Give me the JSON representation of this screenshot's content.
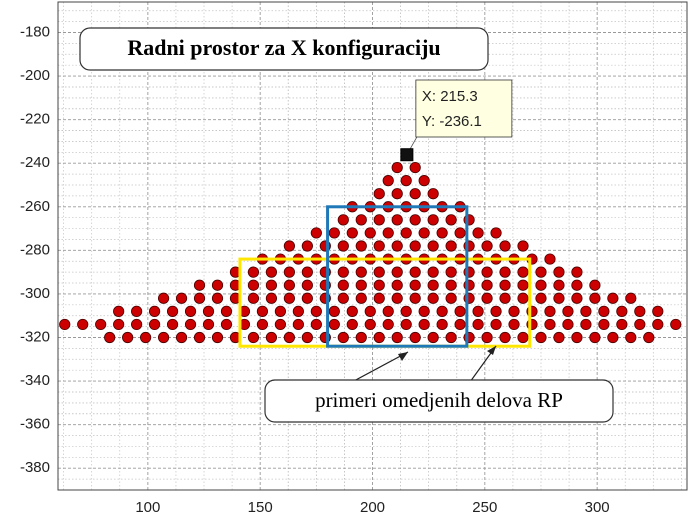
{
  "chart_data": {
    "type": "scatter",
    "title": "Radni prostor za X konfiguraciju",
    "annotation": "primeri omedjenih delova RP",
    "xlim": [
      60,
      340
    ],
    "ylim": [
      -390,
      -166
    ],
    "xticks": [
      100,
      150,
      200,
      250,
      300
    ],
    "yticks": [
      -380,
      -360,
      -340,
      -320,
      -300,
      -280,
      -260,
      -240,
      -220,
      -200,
      -180
    ],
    "grid": true,
    "color": "#cc0000",
    "rows": [
      {
        "y": -242,
        "x": [
          211,
          219
        ]
      },
      {
        "y": -248,
        "x": [
          207,
          215,
          223
        ]
      },
      {
        "y": -254,
        "x": [
          203,
          211,
          219,
          227
        ]
      },
      {
        "y": -260,
        "x": [
          191,
          199,
          207,
          215,
          223,
          231,
          239
        ]
      },
      {
        "y": -266,
        "x": [
          187,
          195,
          203,
          211,
          219,
          227,
          235,
          243
        ]
      },
      {
        "y": -272,
        "x": [
          175,
          183,
          191,
          199,
          207,
          215,
          223,
          231,
          239,
          247,
          255
        ]
      },
      {
        "y": -278,
        "x": [
          163,
          171,
          179,
          187,
          195,
          203,
          211,
          219,
          227,
          235,
          243,
          251,
          259,
          267
        ]
      },
      {
        "y": -284,
        "x": [
          151,
          159,
          167,
          175,
          183,
          191,
          199,
          207,
          215,
          223,
          231,
          239,
          247,
          255,
          263,
          271,
          279
        ]
      },
      {
        "y": -290,
        "x": [
          139,
          147,
          155,
          163,
          171,
          179,
          187,
          195,
          203,
          211,
          219,
          227,
          235,
          243,
          251,
          259,
          267,
          275,
          283,
          291
        ]
      },
      {
        "y": -296,
        "x": [
          123,
          131,
          139,
          147,
          155,
          163,
          171,
          179,
          187,
          195,
          203,
          211,
          219,
          227,
          235,
          243,
          251,
          259,
          267,
          275,
          283,
          291,
          299
        ]
      },
      {
        "y": -302,
        "x": [
          107,
          115,
          123,
          131,
          139,
          147,
          155,
          163,
          171,
          179,
          187,
          195,
          203,
          211,
          219,
          227,
          235,
          243,
          251,
          259,
          267,
          275,
          283,
          291,
          299,
          307,
          315
        ]
      },
      {
        "y": -308,
        "x": [
          87,
          95,
          103,
          111,
          119,
          127,
          135,
          143,
          151,
          159,
          167,
          175,
          183,
          191,
          199,
          207,
          215,
          223,
          231,
          239,
          247,
          255,
          263,
          271,
          279,
          287,
          295,
          303,
          311,
          319,
          327
        ]
      },
      {
        "y": -314,
        "x": [
          63,
          71,
          79,
          87,
          95,
          103,
          111,
          119,
          127,
          135,
          143,
          151,
          159,
          167,
          175,
          183,
          191,
          199,
          207,
          215,
          223,
          231,
          239,
          247,
          255,
          263,
          271,
          279,
          287,
          295,
          303,
          311,
          319,
          327,
          335
        ]
      },
      {
        "y": -320,
        "x": [
          83,
          91,
          99,
          107,
          115,
          123,
          131,
          139,
          147,
          155,
          163,
          171,
          179,
          187,
          195,
          203,
          211,
          219,
          227,
          235,
          243,
          251,
          259,
          267,
          275,
          283,
          291,
          299,
          307,
          315,
          323
        ]
      }
    ],
    "regions": [
      {
        "color": "#ffe600",
        "xlim": [
          141,
          270
        ],
        "ylim": [
          -324,
          -284
        ]
      },
      {
        "color": "#1f78b8",
        "xlim": [
          180,
          242
        ],
        "ylim": [
          -324,
          -260
        ]
      }
    ],
    "datatip": {
      "x": 215.3,
      "y": -236.1,
      "labels": [
        "X: 215.3",
        "Y: -236.1"
      ]
    }
  }
}
